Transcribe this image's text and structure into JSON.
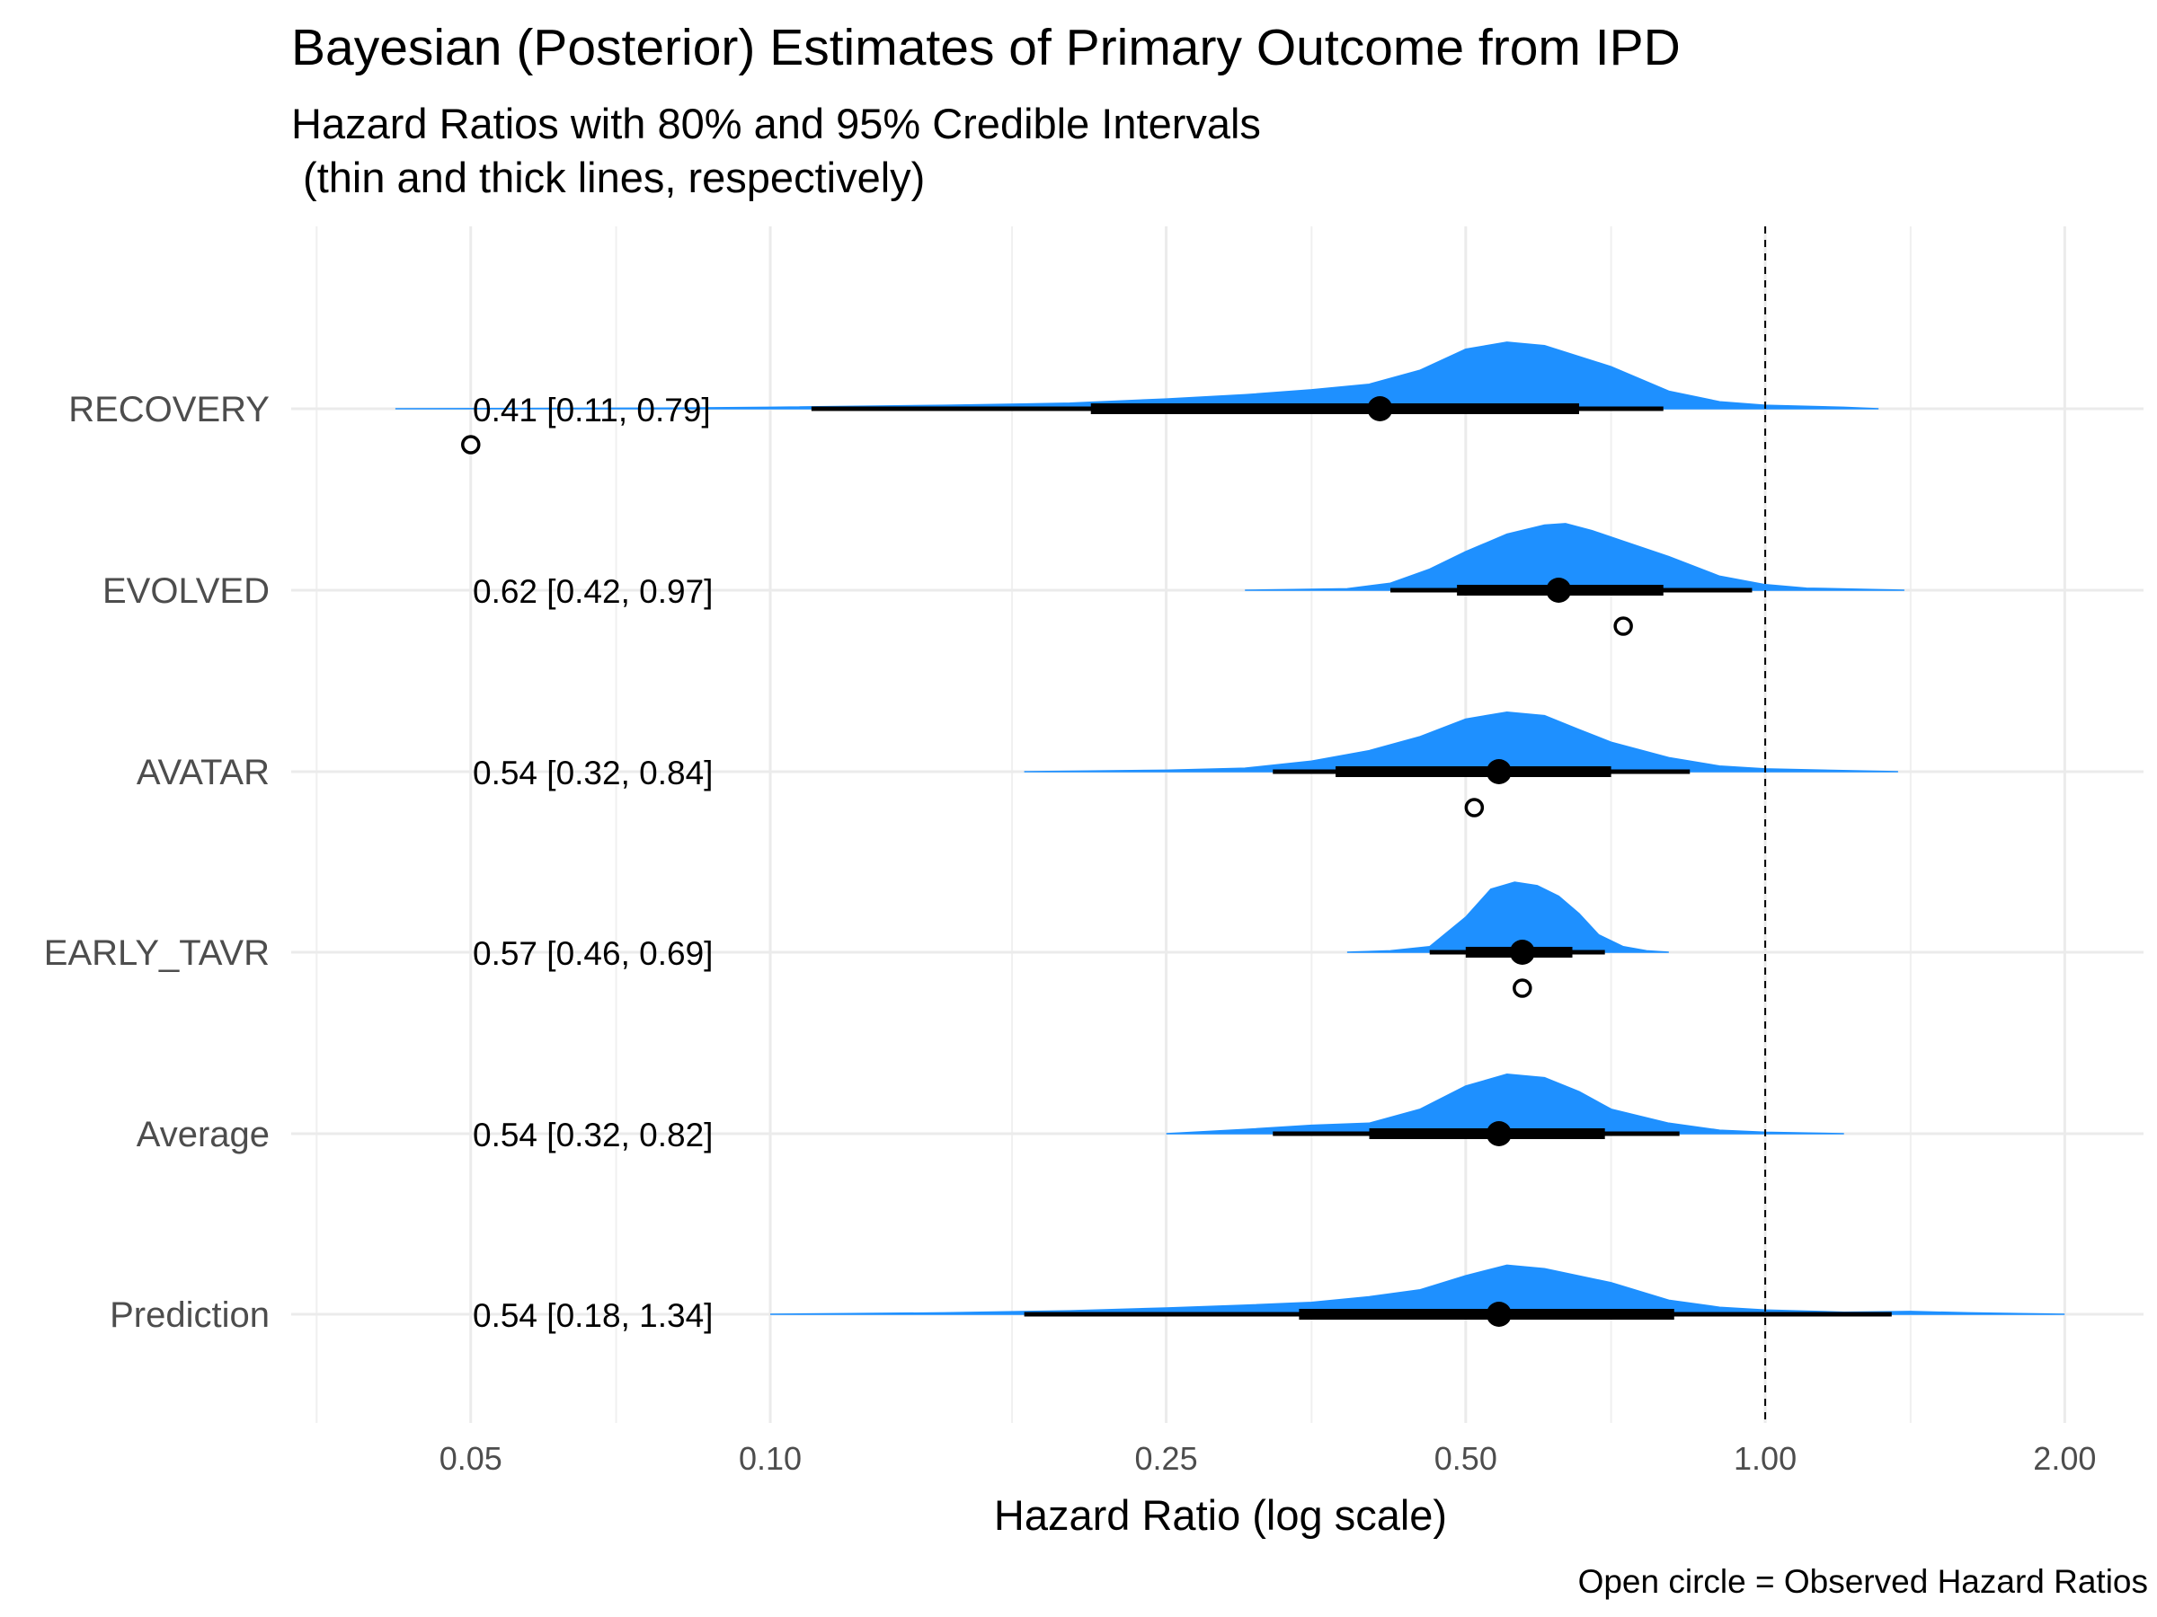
{
  "chart_data": {
    "type": "forest-density",
    "title": "Bayesian (Posterior) Estimates of Primary Outcome from IPD",
    "subtitle_lines": [
      "Hazard Ratios with 80% and 95% Credible Intervals",
      " (thin and thick lines, respectively)"
    ],
    "xlabel": "Hazard Ratio (log scale)",
    "x_scale": "log",
    "xlim": [
      0.033,
      2.4
    ],
    "x_ticks": [
      0.05,
      0.1,
      0.25,
      0.5,
      1.0,
      2.0
    ],
    "x_tick_labels": [
      "0.05",
      "0.10",
      "0.25",
      "0.50",
      "1.00",
      "2.00"
    ],
    "x_minor_ticks": [
      0.035,
      0.07,
      0.175,
      0.35,
      0.7,
      1.4
    ],
    "reference_line": 1.0,
    "caption": "Open circle = Observed Hazard Ratios",
    "density_color": "#1E90FF",
    "rows": [
      {
        "label": "RECOVERY",
        "median": 0.41,
        "ci80": [
          0.21,
          0.65
        ],
        "ci95": [
          0.11,
          0.79
        ],
        "observed": 0.05,
        "text": "0.41 [0.11, 0.79]",
        "density": [
          [
            0.042,
            0.0
          ],
          [
            0.08,
            0.01
          ],
          [
            0.1,
            0.02
          ],
          [
            0.15,
            0.05
          ],
          [
            0.2,
            0.08
          ],
          [
            0.25,
            0.14
          ],
          [
            0.3,
            0.2
          ],
          [
            0.35,
            0.27
          ],
          [
            0.4,
            0.35
          ],
          [
            0.45,
            0.55
          ],
          [
            0.5,
            0.85
          ],
          [
            0.55,
            0.95
          ],
          [
            0.6,
            0.9
          ],
          [
            0.7,
            0.6
          ],
          [
            0.8,
            0.25
          ],
          [
            0.9,
            0.1
          ],
          [
            1.0,
            0.05
          ],
          [
            1.2,
            0.02
          ],
          [
            1.3,
            0.0
          ]
        ]
      },
      {
        "label": "EVOLVED",
        "median": 0.62,
        "ci80": [
          0.49,
          0.79
        ],
        "ci95": [
          0.42,
          0.97
        ],
        "observed": 0.72,
        "text": "0.62 [0.42, 0.97]",
        "density": [
          [
            0.3,
            0.0
          ],
          [
            0.38,
            0.02
          ],
          [
            0.42,
            0.1
          ],
          [
            0.46,
            0.3
          ],
          [
            0.5,
            0.55
          ],
          [
            0.55,
            0.8
          ],
          [
            0.6,
            0.93
          ],
          [
            0.63,
            0.95
          ],
          [
            0.67,
            0.85
          ],
          [
            0.72,
            0.7
          ],
          [
            0.8,
            0.48
          ],
          [
            0.9,
            0.2
          ],
          [
            1.0,
            0.08
          ],
          [
            1.1,
            0.03
          ],
          [
            1.38,
            0.0
          ]
        ]
      },
      {
        "label": "AVATAR",
        "median": 0.54,
        "ci80": [
          0.37,
          0.7
        ],
        "ci95": [
          0.32,
          0.84
        ],
        "observed": 0.51,
        "text": "0.54 [0.32, 0.84]",
        "density": [
          [
            0.18,
            0.0
          ],
          [
            0.25,
            0.02
          ],
          [
            0.3,
            0.05
          ],
          [
            0.35,
            0.15
          ],
          [
            0.4,
            0.3
          ],
          [
            0.45,
            0.5
          ],
          [
            0.5,
            0.75
          ],
          [
            0.55,
            0.85
          ],
          [
            0.6,
            0.8
          ],
          [
            0.65,
            0.6
          ],
          [
            0.7,
            0.42
          ],
          [
            0.8,
            0.2
          ],
          [
            0.9,
            0.08
          ],
          [
            1.0,
            0.04
          ],
          [
            1.36,
            0.0
          ]
        ]
      },
      {
        "label": "EARLY_TAVR",
        "median": 0.57,
        "ci80": [
          0.5,
          0.64
        ],
        "ci95": [
          0.46,
          0.69
        ],
        "observed": 0.57,
        "text": "0.57 [0.46, 0.69]",
        "density": [
          [
            0.38,
            0.0
          ],
          [
            0.42,
            0.02
          ],
          [
            0.46,
            0.08
          ],
          [
            0.5,
            0.5
          ],
          [
            0.53,
            0.9
          ],
          [
            0.56,
            1.0
          ],
          [
            0.59,
            0.95
          ],
          [
            0.62,
            0.8
          ],
          [
            0.65,
            0.55
          ],
          [
            0.68,
            0.25
          ],
          [
            0.72,
            0.08
          ],
          [
            0.76,
            0.02
          ],
          [
            0.8,
            0.0
          ]
        ]
      },
      {
        "label": "Average",
        "median": 0.54,
        "ci80": [
          0.4,
          0.69
        ],
        "ci95": [
          0.32,
          0.82
        ],
        "observed": null,
        "text": "0.54 [0.32, 0.82]",
        "density": [
          [
            0.25,
            0.0
          ],
          [
            0.3,
            0.06
          ],
          [
            0.35,
            0.12
          ],
          [
            0.4,
            0.15
          ],
          [
            0.45,
            0.35
          ],
          [
            0.5,
            0.68
          ],
          [
            0.55,
            0.85
          ],
          [
            0.6,
            0.8
          ],
          [
            0.65,
            0.6
          ],
          [
            0.7,
            0.35
          ],
          [
            0.8,
            0.15
          ],
          [
            0.9,
            0.05
          ],
          [
            1.0,
            0.02
          ],
          [
            1.2,
            0.0
          ]
        ]
      },
      {
        "label": "Prediction",
        "median": 0.54,
        "ci80": [
          0.34,
          0.81
        ],
        "ci95": [
          0.18,
          1.34
        ],
        "observed": null,
        "text": "0.54 [0.18, 1.34]",
        "density": [
          [
            0.1,
            0.0
          ],
          [
            0.15,
            0.02
          ],
          [
            0.2,
            0.05
          ],
          [
            0.25,
            0.09
          ],
          [
            0.3,
            0.13
          ],
          [
            0.35,
            0.17
          ],
          [
            0.4,
            0.25
          ],
          [
            0.45,
            0.35
          ],
          [
            0.5,
            0.55
          ],
          [
            0.55,
            0.7
          ],
          [
            0.6,
            0.65
          ],
          [
            0.7,
            0.45
          ],
          [
            0.8,
            0.2
          ],
          [
            0.9,
            0.1
          ],
          [
            1.0,
            0.06
          ],
          [
            1.2,
            0.03
          ],
          [
            1.4,
            0.04
          ],
          [
            1.6,
            0.02
          ],
          [
            2.0,
            0.0
          ]
        ]
      }
    ]
  }
}
